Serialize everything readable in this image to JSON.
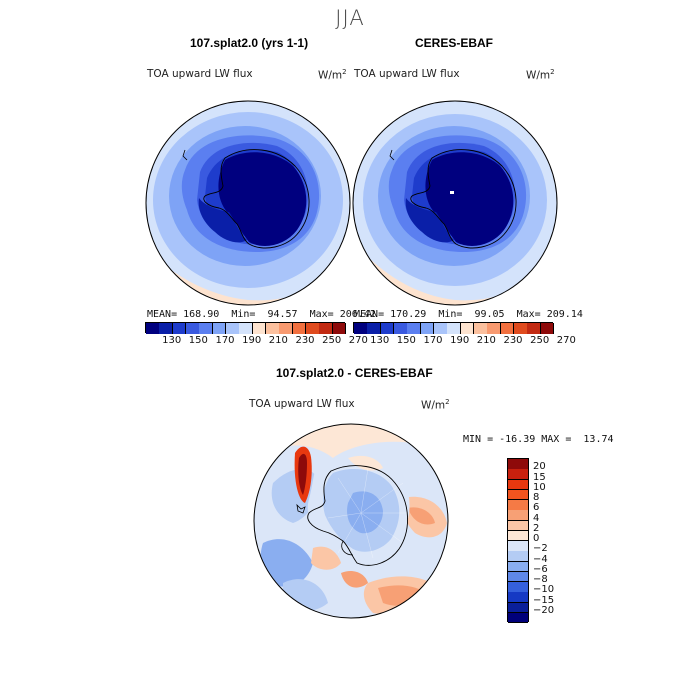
{
  "figure": {
    "season": "JJA"
  },
  "panel_left": {
    "title": "107.splat2.0 (yrs 1-1)",
    "field_label": "TOA upward LW flux",
    "units": "W/m",
    "units_sup": "2",
    "mean_label": "MEAN=",
    "mean_value": "168.90",
    "min_label": "Min=",
    "min_value": "94.57",
    "max_label": "Max=",
    "max_value": "206.42"
  },
  "panel_right": {
    "title": "CERES-EBAF",
    "field_label": "TOA upward LW flux",
    "units": "W/m",
    "units_sup": "2",
    "mean_label": "MEAN=",
    "mean_value": "170.29",
    "min_label": "Min=",
    "min_value": "99.05",
    "max_label": "Max=",
    "max_value": "209.14"
  },
  "panel_diff": {
    "title": "107.splat2.0 - CERES-EBAF",
    "field_label": "TOA upward LW flux",
    "units": "W/m",
    "units_sup": "2",
    "minmax_text": "MIN = -16.39 MAX =  13.74"
  },
  "colorbar_top": {
    "tick_labels": [
      "130",
      "150",
      "170",
      "190",
      "210",
      "230",
      "250",
      "270"
    ],
    "colors": [
      "#00007f",
      "#0a1fa8",
      "#1e3ccc",
      "#3a5ae0",
      "#5b7ff0",
      "#7ea3f6",
      "#a9c4fa",
      "#d4e3fb",
      "#fde3cf",
      "#fbc09e",
      "#f89a70",
      "#f2703f",
      "#e04b1e",
      "#c22a12",
      "#8e0a0a"
    ]
  },
  "colorbar_diff": {
    "tick_labels": [
      "20",
      "15",
      "10",
      "8",
      "6",
      "4",
      "2",
      "0",
      "−2",
      "−4",
      "−6",
      "−8",
      "−10",
      "−15",
      "−20"
    ],
    "colors": [
      "#8e0a0a",
      "#c8200e",
      "#e8380f",
      "#f2541f",
      "#f57a45",
      "#f7a075",
      "#fbc6a6",
      "#fde7d6",
      "#dbe6f8",
      "#b4ccf4",
      "#8aaef0",
      "#5f88e8",
      "#3560dc",
      "#1639c4",
      "#0a1f9a",
      "#00007a"
    ]
  }
}
